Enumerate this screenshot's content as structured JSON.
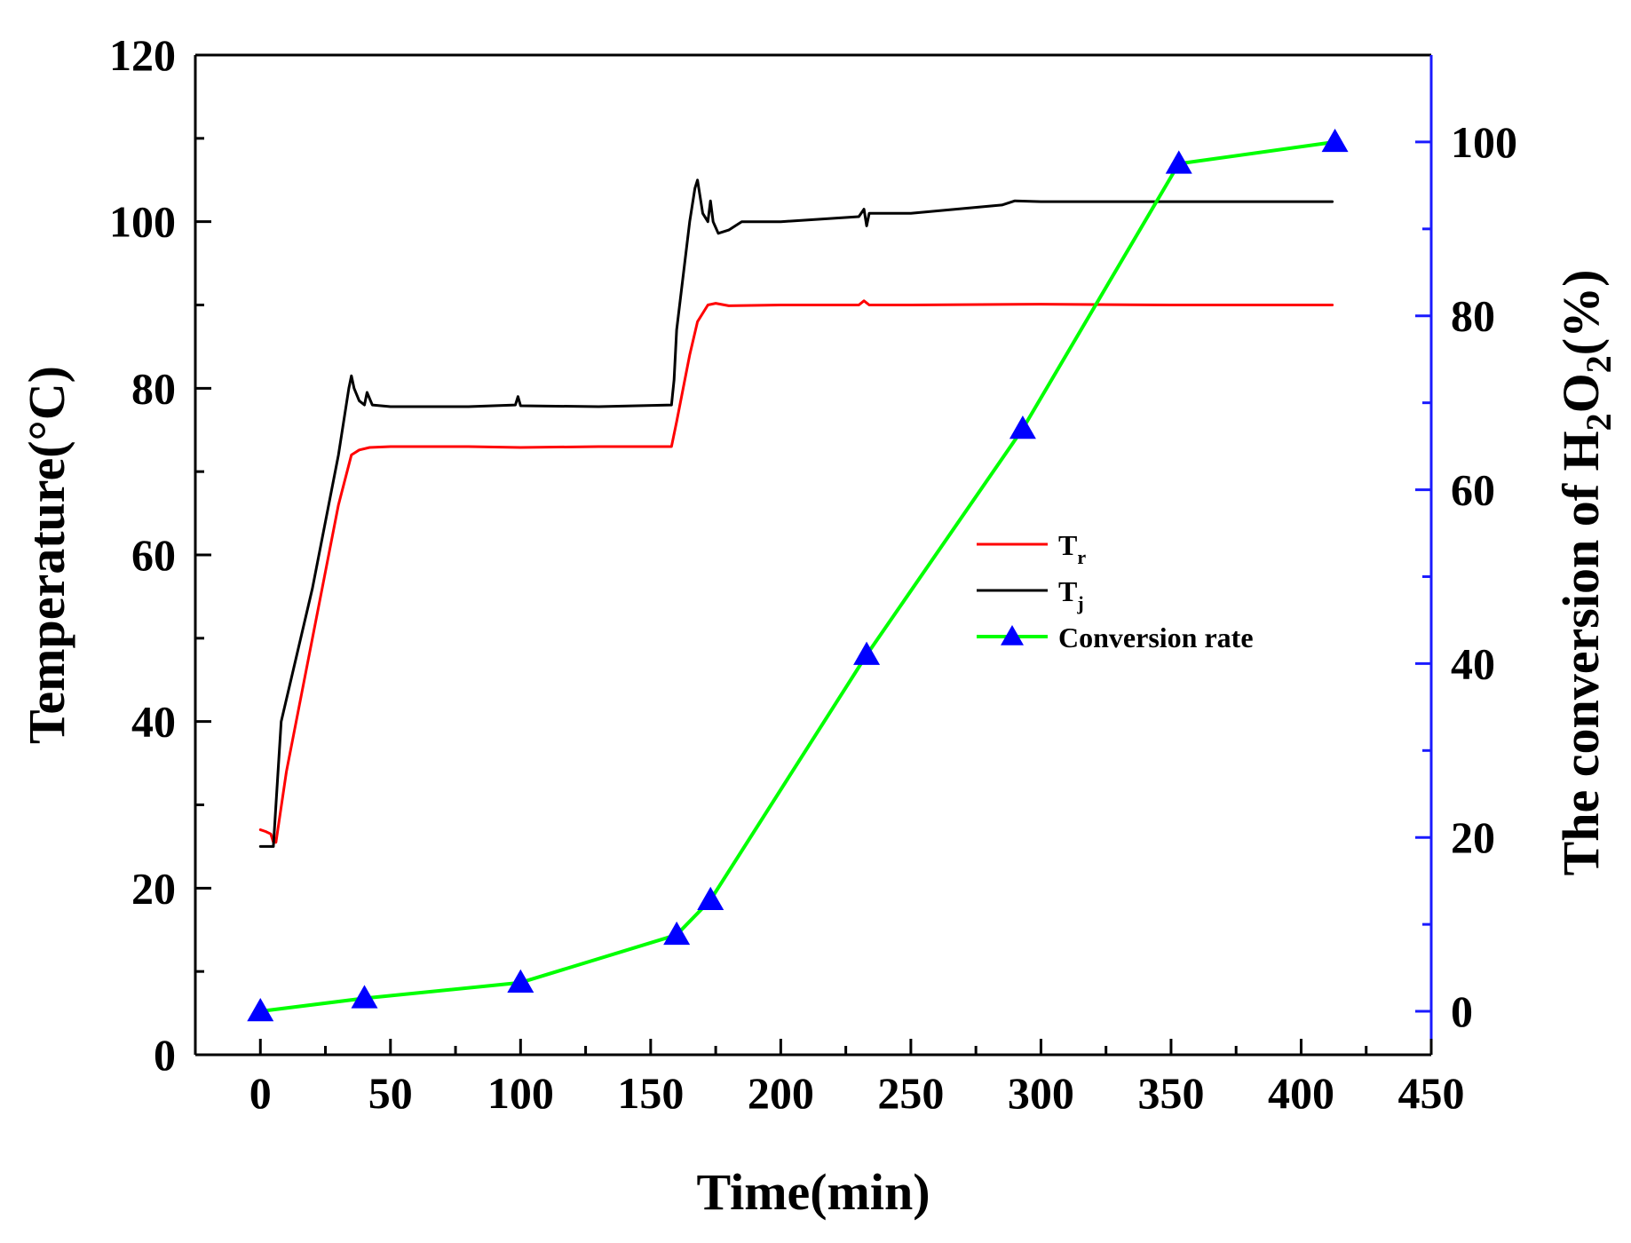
{
  "chart_data": {
    "type": "line",
    "title": "",
    "xlabel": "Time(min)",
    "ylabel": "Temperature(°C)",
    "y2label": {
      "prefix": "The conversion of H",
      "sub1": "2",
      "mid": "O",
      "sub2": "2",
      "suffix": "(%)"
    },
    "xlim": [
      -25,
      450
    ],
    "ylim": [
      0,
      120
    ],
    "y2lim": [
      -5,
      110
    ],
    "x_ticks": [
      0,
      50,
      100,
      150,
      200,
      250,
      300,
      350,
      400,
      450
    ],
    "x_tick_labels": [
      "0",
      "50",
      "100",
      "150",
      "200",
      "250",
      "300",
      "350",
      "400",
      "450"
    ],
    "y_ticks": [
      0,
      20,
      40,
      60,
      80,
      100,
      120
    ],
    "y_tick_labels": [
      "0",
      "20",
      "40",
      "60",
      "80",
      "100",
      "120"
    ],
    "y2_ticks": [
      0,
      20,
      40,
      60,
      80,
      100
    ],
    "y2_tick_labels": [
      "0",
      "20",
      "40",
      "60",
      "80",
      "100"
    ],
    "legend_position": "center-right",
    "series": [
      {
        "name": "T_r",
        "legend_main": "T",
        "legend_sub": "r",
        "color": "#ff0000",
        "axis": "left",
        "marker": "none",
        "x": [
          0,
          2,
          4,
          5,
          6,
          10,
          20,
          30,
          35,
          38,
          42,
          50,
          80,
          100,
          130,
          155,
          158,
          160,
          165,
          168,
          172,
          175,
          180,
          200,
          230,
          232,
          234,
          250,
          300,
          350,
          400,
          412
        ],
        "y": [
          27,
          26.8,
          26.5,
          25.5,
          25.5,
          34,
          50,
          66,
          72,
          72.6,
          72.9,
          73,
          73,
          72.9,
          73,
          73,
          73,
          76,
          84,
          88,
          90,
          90.2,
          89.9,
          90,
          90,
          90.5,
          90,
          90,
          90.1,
          90,
          90,
          90
        ]
      },
      {
        "name": "T_j",
        "legend_main": "T",
        "legend_sub": "j",
        "color": "#000000",
        "axis": "left",
        "marker": "none",
        "x": [
          0,
          2,
          4,
          5,
          6,
          8,
          20,
          30,
          34,
          35,
          36,
          38,
          40,
          41,
          43,
          50,
          80,
          98,
          99,
          100,
          130,
          158,
          159,
          160,
          165,
          167,
          168,
          170,
          172,
          173,
          174,
          176,
          180,
          185,
          200,
          230,
          232,
          233,
          234,
          250,
          285,
          290,
          300,
          350,
          400,
          412
        ],
        "y": [
          25,
          25,
          25,
          25,
          30,
          40,
          56,
          72,
          80,
          81.5,
          80,
          78.5,
          78,
          79.5,
          78,
          77.8,
          77.8,
          78,
          79,
          77.9,
          77.8,
          78,
          81,
          87,
          100,
          104,
          105,
          101,
          100,
          102.5,
          100,
          98.6,
          99,
          100,
          100,
          100.6,
          101.5,
          99.5,
          101,
          101,
          102,
          102.5,
          102.4,
          102.4,
          102.4,
          102.4
        ]
      },
      {
        "name": "Conversion rate",
        "legend_main": "Conversion rate",
        "legend_sub": "",
        "color": "#00ff00",
        "marker_color": "#0000ff",
        "axis": "right",
        "marker": "triangle",
        "x": [
          0,
          40,
          100,
          160,
          173,
          233,
          293,
          353,
          413
        ],
        "y": [
          0,
          1.5,
          3.3,
          8.8,
          12.8,
          41,
          67,
          97.5,
          100
        ]
      }
    ]
  }
}
